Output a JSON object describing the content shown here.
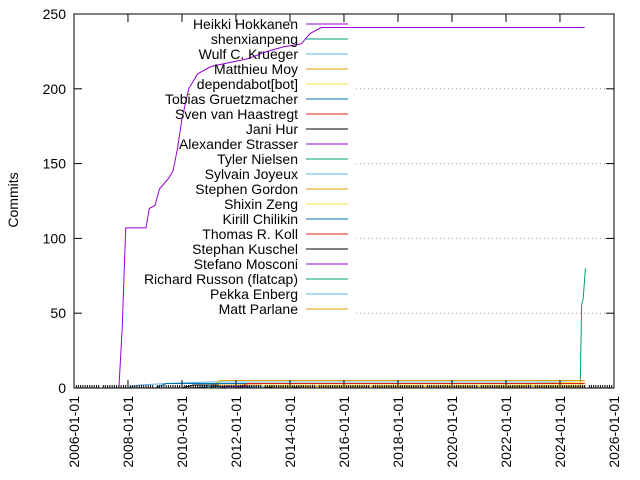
{
  "chart_data": {
    "type": "line",
    "title": "",
    "xlabel": "",
    "ylabel": "Commits",
    "xlim": [
      "2006-01-01",
      "2026-01-01"
    ],
    "ylim": [
      0,
      250
    ],
    "x_ticks": [
      "2006-01-01",
      "2008-01-01",
      "2010-01-01",
      "2012-01-01",
      "2014-01-01",
      "2016-01-01",
      "2018-01-01",
      "2020-01-01",
      "2022-01-01",
      "2024-01-01",
      "2026-01-01"
    ],
    "y_ticks": [
      0,
      50,
      100,
      150,
      200,
      250
    ],
    "grid": true,
    "legend_position": "top-right",
    "series": [
      {
        "name": "Heikki Hokkanen",
        "color": "#9400d3",
        "points": [
          [
            "2007-09-01",
            0
          ],
          [
            "2007-10-15",
            40
          ],
          [
            "2007-12-01",
            107
          ],
          [
            "2008-09-01",
            107
          ],
          [
            "2008-10-15",
            120
          ],
          [
            "2009-01-01",
            122
          ],
          [
            "2009-03-01",
            133
          ],
          [
            "2009-07-01",
            140
          ],
          [
            "2009-09-01",
            145
          ],
          [
            "2009-11-01",
            160
          ],
          [
            "2010-01-01",
            180
          ],
          [
            "2010-04-01",
            200
          ],
          [
            "2010-08-01",
            210
          ],
          [
            "2011-02-01",
            215
          ],
          [
            "2012-06-01",
            220
          ],
          [
            "2013-03-01",
            225
          ],
          [
            "2013-10-01",
            228
          ],
          [
            "2014-06-01",
            230
          ],
          [
            "2014-10-01",
            237
          ],
          [
            "2015-03-01",
            241
          ],
          [
            "2024-12-01",
            241
          ]
        ]
      },
      {
        "name": "shenxianpeng",
        "color": "#009e73",
        "points": [
          [
            "2024-10-01",
            0
          ],
          [
            "2024-10-20",
            55
          ],
          [
            "2024-11-10",
            60
          ],
          [
            "2024-11-25",
            70
          ],
          [
            "2024-12-10",
            80
          ]
        ]
      },
      {
        "name": "Wulf C. Krueger",
        "color": "#56b4e9",
        "points": [
          [
            "2008-01-01",
            0
          ],
          [
            "2008-06-01",
            2
          ],
          [
            "2009-06-01",
            3
          ],
          [
            "2011-01-01",
            4
          ],
          [
            "2024-12-01",
            4
          ]
        ]
      },
      {
        "name": "Matthieu Moy",
        "color": "#e69f00",
        "points": [
          [
            "2011-01-01",
            0
          ],
          [
            "2011-06-01",
            5
          ],
          [
            "2024-12-01",
            5
          ]
        ]
      },
      {
        "name": "dependabot[bot]",
        "color": "#f0e442",
        "points": [
          [
            "2022-01-01",
            0
          ],
          [
            "2023-01-01",
            3
          ],
          [
            "2024-12-01",
            4
          ]
        ]
      },
      {
        "name": "Tobias Gruetzmacher",
        "color": "#0072b2",
        "points": [
          [
            "2009-01-01",
            0
          ],
          [
            "2009-06-01",
            3
          ],
          [
            "2024-12-01",
            3
          ]
        ]
      },
      {
        "name": "Sven van Haastregt",
        "color": "#e51e10",
        "points": [
          [
            "2012-01-01",
            0
          ],
          [
            "2012-06-01",
            3
          ],
          [
            "2024-12-01",
            3
          ]
        ]
      },
      {
        "name": "Jani Hur",
        "color": "#000000",
        "points": [
          [
            "2010-01-01",
            0
          ],
          [
            "2010-06-01",
            2
          ],
          [
            "2024-12-01",
            2
          ]
        ]
      },
      {
        "name": "Alexander Strasser",
        "color": "#9400d3",
        "points": [
          [
            "2012-01-01",
            0
          ],
          [
            "2012-06-01",
            2
          ],
          [
            "2024-12-01",
            2
          ]
        ]
      },
      {
        "name": "Tyler Nielsen",
        "color": "#009e73",
        "points": [
          [
            "2013-01-01",
            0
          ],
          [
            "2013-06-01",
            2
          ],
          [
            "2024-12-01",
            2
          ]
        ]
      },
      {
        "name": "Sylvain Joyeux",
        "color": "#56b4e9",
        "points": [
          [
            "2012-01-01",
            0
          ],
          [
            "2012-03-01",
            2
          ],
          [
            "2024-12-01",
            2
          ]
        ]
      },
      {
        "name": "Stephen Gordon",
        "color": "#e69f00",
        "points": [
          [
            "2011-01-01",
            0
          ],
          [
            "2011-06-01",
            2
          ],
          [
            "2024-12-01",
            2
          ]
        ]
      },
      {
        "name": "Shixin Zeng",
        "color": "#f0e442",
        "points": [
          [
            "2012-06-01",
            0
          ],
          [
            "2013-01-01",
            2
          ],
          [
            "2024-12-01",
            2
          ]
        ]
      },
      {
        "name": "Kirill Chilikin",
        "color": "#0072b2",
        "points": [
          [
            "2010-06-01",
            0
          ],
          [
            "2011-01-01",
            1
          ],
          [
            "2024-12-01",
            1
          ]
        ]
      },
      {
        "name": "Thomas R. Koll",
        "color": "#e51e10",
        "points": [
          [
            "2012-01-01",
            0
          ],
          [
            "2012-06-01",
            1
          ],
          [
            "2024-12-01",
            1
          ]
        ]
      },
      {
        "name": "Stephan Kuschel",
        "color": "#000000",
        "points": [
          [
            "2013-01-01",
            0
          ],
          [
            "2013-06-01",
            1
          ],
          [
            "2024-12-01",
            1
          ]
        ]
      },
      {
        "name": "Stefano Mosconi",
        "color": "#9400d3",
        "points": [
          [
            "2011-06-01",
            0
          ],
          [
            "2011-09-01",
            1
          ],
          [
            "2024-12-01",
            1
          ]
        ]
      },
      {
        "name": "Richard Russon (flatcap)",
        "color": "#009e73",
        "points": [
          [
            "2014-01-01",
            0
          ],
          [
            "2014-06-01",
            1
          ],
          [
            "2024-12-01",
            1
          ]
        ]
      },
      {
        "name": "Pekka Enberg",
        "color": "#56b4e9",
        "points": [
          [
            "2012-01-01",
            0
          ],
          [
            "2012-09-01",
            1
          ],
          [
            "2024-12-01",
            1
          ]
        ]
      },
      {
        "name": "Matt Parlane",
        "color": "#e69f00",
        "points": [
          [
            "2013-01-01",
            0
          ],
          [
            "2013-04-01",
            1
          ],
          [
            "2024-12-01",
            1
          ]
        ]
      }
    ]
  }
}
